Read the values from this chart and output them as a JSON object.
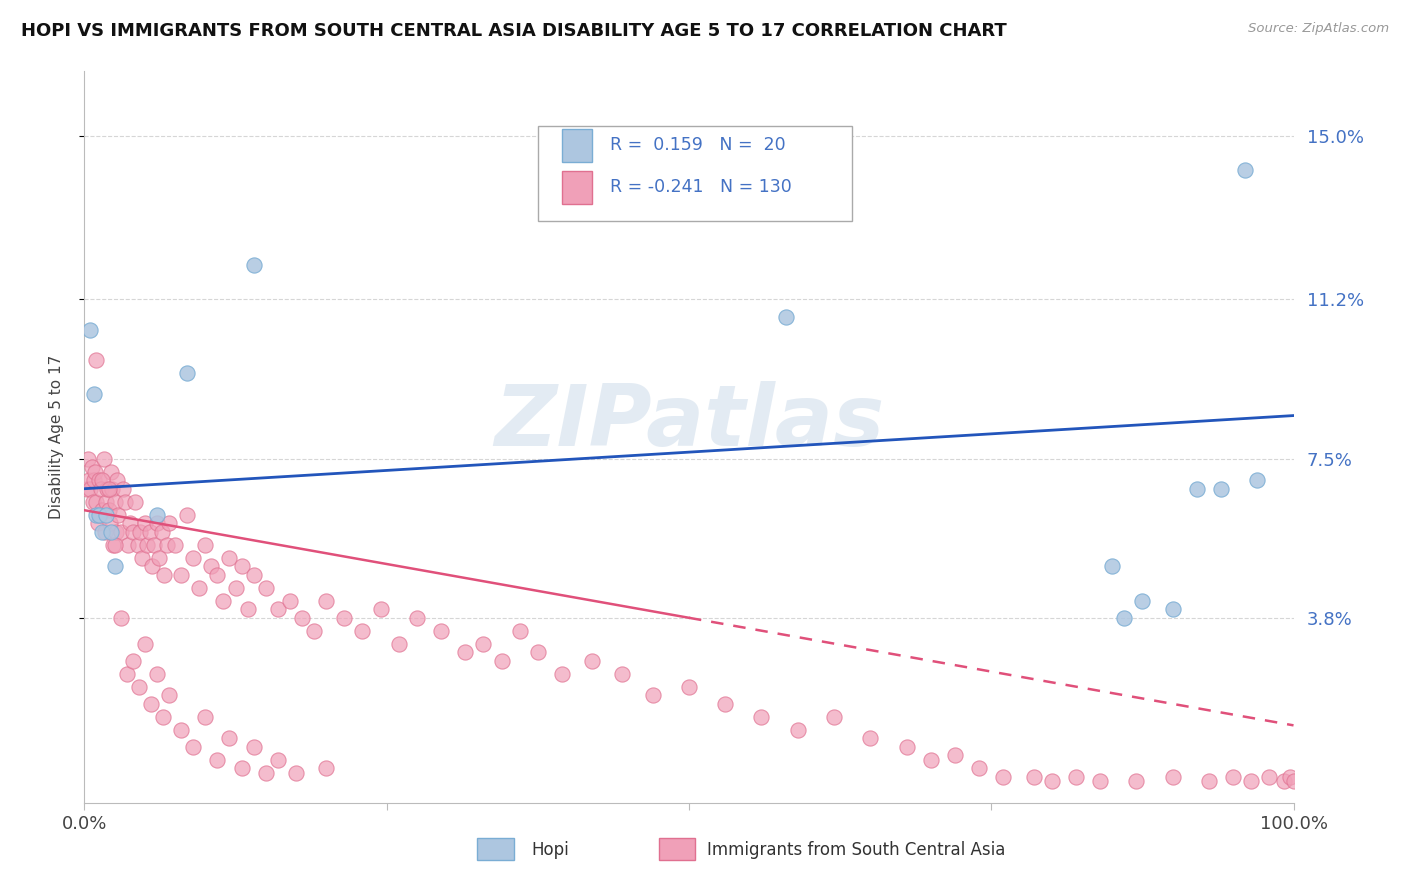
{
  "title": "HOPI VS IMMIGRANTS FROM SOUTH CENTRAL ASIA DISABILITY AGE 5 TO 17 CORRELATION CHART",
  "source": "Source: ZipAtlas.com",
  "ylabel": "Disability Age 5 to 17",
  "xlim": [
    0,
    1
  ],
  "ylim": [
    -0.005,
    0.165
  ],
  "yticks": [
    0.038,
    0.075,
    0.112,
    0.15
  ],
  "ytick_labels": [
    "3.8%",
    "7.5%",
    "11.2%",
    "15.0%"
  ],
  "xtick_labels": [
    "0.0%",
    "100.0%"
  ],
  "hopi_color": "#adc6e0",
  "hopi_edge": "#7aadd4",
  "immigrants_color": "#f0a0b8",
  "immigrants_edge": "#e07090",
  "trend_hopi_color": "#2255bb",
  "trend_immigrants_color": "#e0507a",
  "background_color": "#ffffff",
  "grid_color": "#cccccc",
  "watermark": "ZIPatlas",
  "hopi_x": [
    0.005,
    0.008,
    0.01,
    0.012,
    0.015,
    0.018,
    0.022,
    0.025,
    0.06,
    0.085,
    0.14,
    0.58,
    0.85,
    0.86,
    0.875,
    0.9,
    0.92,
    0.94,
    0.96,
    0.97
  ],
  "hopi_y": [
    0.105,
    0.09,
    0.062,
    0.062,
    0.058,
    0.062,
    0.058,
    0.05,
    0.062,
    0.095,
    0.12,
    0.108,
    0.05,
    0.038,
    0.042,
    0.04,
    0.068,
    0.068,
    0.142,
    0.07
  ],
  "imm_x": [
    0.002,
    0.003,
    0.004,
    0.005,
    0.006,
    0.007,
    0.008,
    0.009,
    0.01,
    0.011,
    0.012,
    0.013,
    0.014,
    0.015,
    0.016,
    0.017,
    0.018,
    0.019,
    0.02,
    0.021,
    0.022,
    0.023,
    0.024,
    0.025,
    0.026,
    0.027,
    0.028,
    0.03,
    0.032,
    0.034,
    0.036,
    0.038,
    0.04,
    0.042,
    0.044,
    0.046,
    0.048,
    0.05,
    0.052,
    0.054,
    0.056,
    0.058,
    0.06,
    0.062,
    0.064,
    0.066,
    0.068,
    0.07,
    0.075,
    0.08,
    0.085,
    0.09,
    0.095,
    0.1,
    0.105,
    0.11,
    0.115,
    0.12,
    0.125,
    0.13,
    0.135,
    0.14,
    0.15,
    0.16,
    0.17,
    0.18,
    0.19,
    0.2,
    0.215,
    0.23,
    0.245,
    0.26,
    0.275,
    0.295,
    0.315,
    0.33,
    0.345,
    0.36,
    0.375,
    0.395,
    0.42,
    0.445,
    0.47,
    0.5,
    0.53,
    0.56,
    0.59,
    0.62,
    0.65,
    0.68,
    0.7,
    0.72,
    0.74,
    0.76,
    0.785,
    0.8,
    0.82,
    0.84,
    0.87,
    0.9,
    0.93,
    0.95,
    0.965,
    0.98,
    0.992,
    0.997,
    1.0,
    0.01,
    0.015,
    0.02,
    0.025,
    0.03,
    0.035,
    0.04,
    0.045,
    0.05,
    0.055,
    0.06,
    0.065,
    0.07,
    0.08,
    0.09,
    0.1,
    0.11,
    0.12,
    0.13,
    0.14,
    0.15,
    0.16,
    0.175,
    0.2
  ],
  "imm_y": [
    0.068,
    0.075,
    0.07,
    0.068,
    0.073,
    0.065,
    0.07,
    0.072,
    0.065,
    0.06,
    0.07,
    0.062,
    0.068,
    0.063,
    0.075,
    0.058,
    0.065,
    0.068,
    0.063,
    0.06,
    0.072,
    0.068,
    0.055,
    0.065,
    0.058,
    0.07,
    0.062,
    0.058,
    0.068,
    0.065,
    0.055,
    0.06,
    0.058,
    0.065,
    0.055,
    0.058,
    0.052,
    0.06,
    0.055,
    0.058,
    0.05,
    0.055,
    0.06,
    0.052,
    0.058,
    0.048,
    0.055,
    0.06,
    0.055,
    0.048,
    0.062,
    0.052,
    0.045,
    0.055,
    0.05,
    0.048,
    0.042,
    0.052,
    0.045,
    0.05,
    0.04,
    0.048,
    0.045,
    0.04,
    0.042,
    0.038,
    0.035,
    0.042,
    0.038,
    0.035,
    0.04,
    0.032,
    0.038,
    0.035,
    0.03,
    0.032,
    0.028,
    0.035,
    0.03,
    0.025,
    0.028,
    0.025,
    0.02,
    0.022,
    0.018,
    0.015,
    0.012,
    0.015,
    0.01,
    0.008,
    0.005,
    0.006,
    0.003,
    0.001,
    0.001,
    0.0,
    0.001,
    0.0,
    0.0,
    0.001,
    0.0,
    0.001,
    0.0,
    0.001,
    0.0,
    0.001,
    0.0,
    0.098,
    0.07,
    0.068,
    0.055,
    0.038,
    0.025,
    0.028,
    0.022,
    0.032,
    0.018,
    0.025,
    0.015,
    0.02,
    0.012,
    0.008,
    0.015,
    0.005,
    0.01,
    0.003,
    0.008,
    0.002,
    0.005,
    0.002,
    0.003
  ],
  "hopi_trend_x0": 0,
  "hopi_trend_y0": 0.068,
  "hopi_trend_x1": 1.0,
  "hopi_trend_y1": 0.085,
  "imm_trend_solid_x0": 0,
  "imm_trend_solid_y0": 0.063,
  "imm_trend_solid_x1": 0.5,
  "imm_trend_solid_y1": 0.038,
  "imm_trend_dash_x0": 0.5,
  "imm_trend_dash_y0": 0.038,
  "imm_trend_dash_x1": 1.0,
  "imm_trend_dash_y1": 0.013
}
